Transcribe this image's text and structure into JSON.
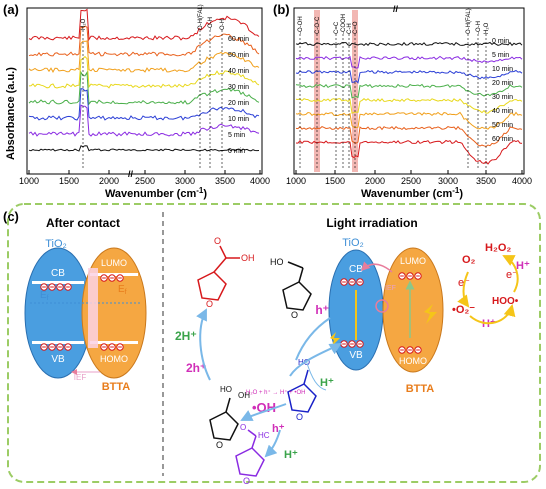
{
  "chart_data": [
    {
      "panel": "(a)",
      "type": "line",
      "xlabel": "Wavenumber (cm",
      "xlabel_unit_sup": "-1",
      "ylabel": "Absorbance (a.u.)",
      "x_ticks_left": [
        "1000",
        "1500",
        "2000"
      ],
      "x_ticks_right": [
        "2500",
        "3000",
        "3500",
        "4000"
      ],
      "x_break": "//",
      "annotations": [
        "H₂O",
        "O-H(FAL)",
        "-O-H",
        "O-H"
      ],
      "series": [
        {
          "name": "60 min",
          "color": "#d7191c"
        },
        {
          "name": "50 min",
          "color": "#e8601c"
        },
        {
          "name": "40 min",
          "color": "#f1a01c"
        },
        {
          "name": "30 min",
          "color": "#e8d81c"
        },
        {
          "name": "20 min",
          "color": "#4cb04c"
        },
        {
          "name": "10 min",
          "color": "#2b3fd6"
        },
        {
          "name": "5 min",
          "color": "#8a2be2"
        },
        {
          "name": "0 min",
          "color": "#111111"
        }
      ]
    },
    {
      "panel": "(b)",
      "type": "line",
      "xlabel": "Wavenumber (cm",
      "xlabel_unit_sup": "-1",
      "x_ticks_left": [
        "1000",
        "1500",
        "2000"
      ],
      "x_ticks_right": [
        "2500",
        "3000",
        "3500",
        "4000"
      ],
      "x_break": "//",
      "annotations": [
        "-O-OH",
        "C-O-C",
        "C=C",
        "-COOH",
        "C-H",
        "C=O",
        "O-H(FAL)",
        "-O-H",
        "H₂O"
      ],
      "series": [
        {
          "name": "0 min",
          "color": "#111111"
        },
        {
          "name": "5 min",
          "color": "#8a2be2"
        },
        {
          "name": "10 min",
          "color": "#2b3fd6"
        },
        {
          "name": "20 min",
          "color": "#4cb04c"
        },
        {
          "name": "30 min",
          "color": "#e8d81c"
        },
        {
          "name": "40 min",
          "color": "#f1a01c"
        },
        {
          "name": "50 min",
          "color": "#e8601c"
        },
        {
          "name": "60 min",
          "color": "#d7191c"
        }
      ]
    }
  ],
  "panel_c": {
    "label": "(c)",
    "left_title": "After contact",
    "right_title": "Light irradiation",
    "tio2": "TiO₂",
    "btta": "BTTA",
    "cb": "CB",
    "vb": "VB",
    "lumo": "LUMO",
    "homo": "HOMO",
    "ef": "E",
    "ef_sub": "f",
    "ief": "IEF",
    "o2": "O₂",
    "h2o2": "H₂O₂",
    "e_minus": "e⁻",
    "h_plus": "H⁺",
    "hoo": "HOO•",
    "superoxide": "•O₂⁻",
    "hole": "h⁺",
    "two_h": "2h⁺",
    "two_hplus": "2H⁺",
    "oh_radical": "•OH",
    "water_eq": "H₂O + h⁺ → H⁺ + •OH",
    "oh_group": "OH",
    "o_atom": "O",
    "oh_small": "HO",
    "hc": "HC",
    "hcoh": "H",
    "ring_o": "O"
  },
  "colors": {
    "panel_border": "#9ccc65",
    "tio2_fill": "#4a9ee0",
    "btta_fill": "#f5a742",
    "ief": "#e8a0c8",
    "tio2_text": "#3f8fd6",
    "btta_text": "#e87d1c",
    "red_text": "#d7191c",
    "magenta": "#d02fb8",
    "green": "#3aa34a",
    "yellow_arrow": "#f5c518",
    "lightblue_arrow": "#7ab8e8"
  }
}
